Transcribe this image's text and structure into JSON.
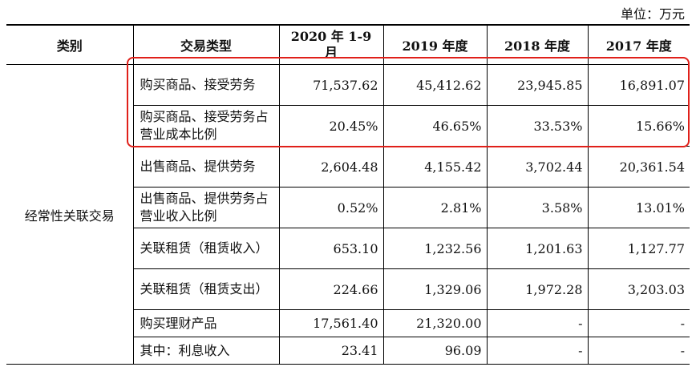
{
  "unit": "单位：万元",
  "headers": {
    "category": "类别",
    "type": "交易类型",
    "y2020": "2020 年 1-9 月",
    "y2019": "2019 年度",
    "y2018": "2018 年度",
    "y2017": "2017 年度"
  },
  "category": "经常性关联交易",
  "rows": [
    {
      "type": "购买商品、接受劳务",
      "y2020": "71,537.62",
      "y2019": "45,412.62",
      "y2018": "23,945.85",
      "y2017": "16,891.07"
    },
    {
      "type": "购买商品、接受劳务占营业成本比例",
      "y2020": "20.45%",
      "y2019": "46.65%",
      "y2018": "33.53%",
      "y2017": "15.66%"
    },
    {
      "type": "出售商品、提供劳务",
      "y2020": "2,604.48",
      "y2019": "4,155.42",
      "y2018": "3,702.44",
      "y2017": "20,361.54"
    },
    {
      "type": "出售商品、提供劳务占营业收入比例",
      "y2020": "0.52%",
      "y2019": "2.81%",
      "y2018": "3.58%",
      "y2017": "13.01%"
    },
    {
      "type": "关联租赁（租赁收入）",
      "y2020": "653.10",
      "y2019": "1,232.56",
      "y2018": "1,201.63",
      "y2017": "1,127.77"
    },
    {
      "type": "关联租赁（租赁支出）",
      "y2020": "224.66",
      "y2019": "1,329.06",
      "y2018": "1,972.28",
      "y2017": "3,203.03"
    },
    {
      "type": "购买理财产品",
      "y2020": "17,561.40",
      "y2019": "21,320.00",
      "y2018": "-",
      "y2017": "-"
    },
    {
      "type": "其中：利息收入",
      "y2020": "23.41",
      "y2019": "96.09",
      "y2018": "-",
      "y2017": "-"
    }
  ],
  "highlight_color": "#e0201a"
}
